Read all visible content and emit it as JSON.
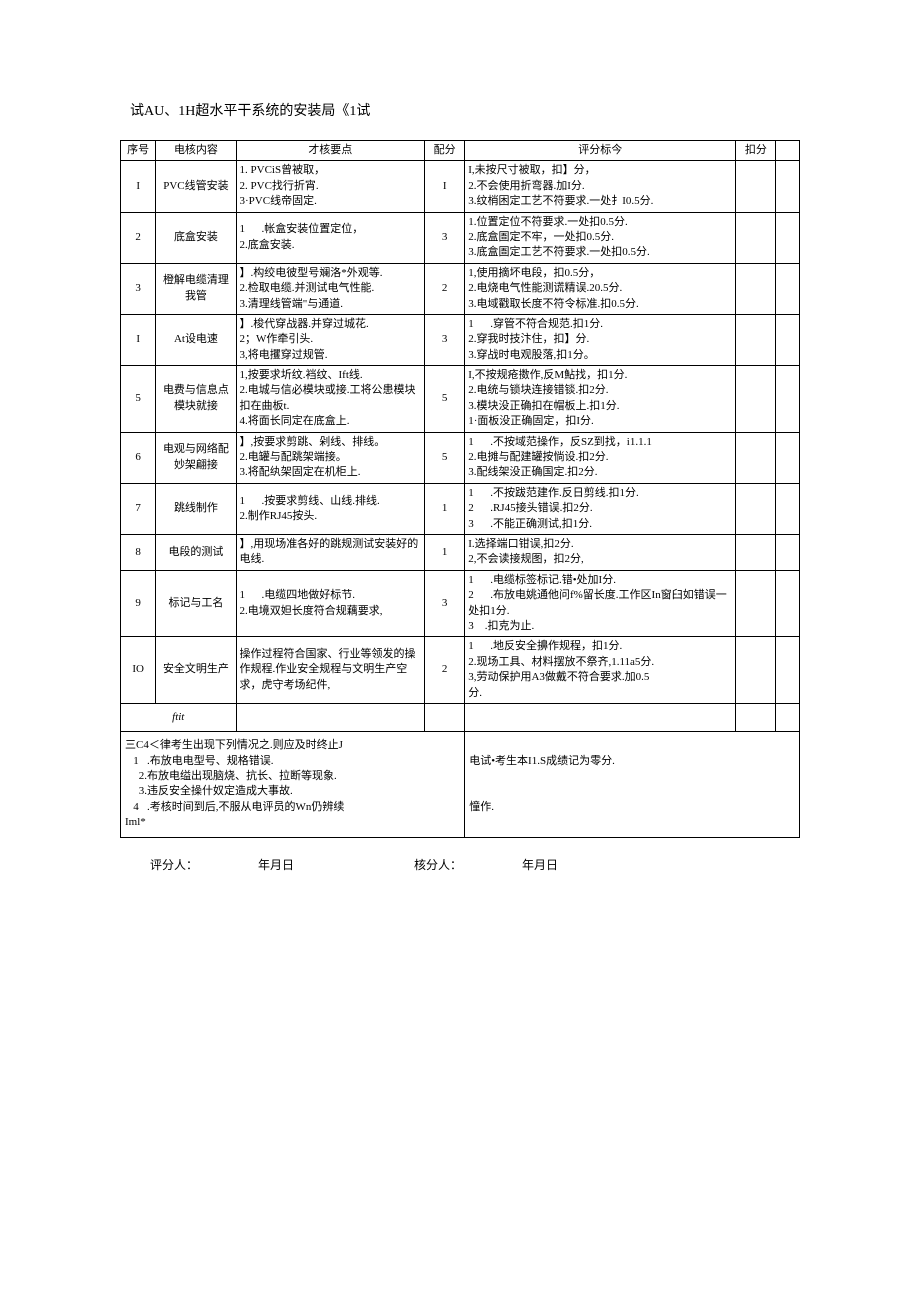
{
  "title": "试AU、1H超水平干系统的安装局《1试",
  "header": {
    "seq": "序号",
    "content": "电核内容",
    "points": "才核要点",
    "score": "配分",
    "criteria": "评分标今",
    "deduct": "扣分",
    "extra": ""
  },
  "rows": [
    {
      "seq": "I",
      "content": "PVC线管安装",
      "points": "1. PVCiS曾被取，\n2. PVC找行折宵.\n3·PVC线帝固定.",
      "score": "I",
      "criteria": "I,未按尺寸被取，扣】分，\n2.不会使用折弯器.加I分.\n3.纹梢困定工艺不符要求.一处扌I0.5分."
    },
    {
      "seq": "2",
      "content": "底盒安装",
      "points": "1      .帐盒安装位置定位，\n2.底盒安装.",
      "score": "3",
      "criteria": "1.位置定位不符要求.一处扣0.5分.\n2.底盒圄定不牢，一处扣0.5分.\n3.底盒圄定工艺不符要求.一处扣0.5分."
    },
    {
      "seq": "3",
      "content": "橙解电缆清理我管",
      "points": "】.构绞电彼型号斓洛*外观等.\n2.检取电缆.并测试电气性能.\n3.清理线管端\"与通道.",
      "score": "2",
      "criteria": "1,使用摘坏电段，扣0.5分，\n2.电烧电气性能测谎精误.20.5分.\n3.电域戳取长度不符令标准.扣0.5分."
    },
    {
      "seq": "I",
      "content": "At设电速",
      "points": "】.梭代穿战器.并穿过城花.\n2；W作牵引头.\n3,将电攫穿过规管.",
      "score": "3",
      "criteria": "1      .穿管不符合规范.扣1分.\n2.穿我时技汴住，扣】分.\n3.穿战时电观股落,扣1分。"
    },
    {
      "seq": "5",
      "content": "电费与信息点模块就接",
      "points": "1,按要求圻纹.裆纹、Ift线.\n2.电城与信必模块或接.工将公患模块扣在曲板t.\n4.将面长同定在底盒上.",
      "score": "5",
      "criteria": "I,不按规疮擞作,反M鮎找，扣1分.\n2.电统与锁块连接错锬.扣2分.\n3.模块没正确扣在帽板上.扣1分.\n1·面板没正确固定，扣I分."
    },
    {
      "seq": "6",
      "content": "电观与网络配妙架翩接",
      "points": "】,按要求剪跳、剁线、排线。\n2.电罐与配跳架端接。\n3.将配纨架固定在机柜上.",
      "score": "5",
      "criteria": "1      .不按域范操作，反SZ到找，i1.1.1\n2.电摊与配建罐按惝设.扣2分.\n3.配线架没正确国定.扣2分."
    },
    {
      "seq": "7",
      "content": "跳线制作",
      "points": "1      .按要求剪线、山线.排线.\n2.制作RJ45按头.",
      "score": "1",
      "criteria": "1      .不按跋范建作.反日剪线.扣1分.\n2      .RJ45接头错误.扣2分.\n3      .不能正确测试,扣1分."
    },
    {
      "seq": "8",
      "content": "电段的测试",
      "points": "】,用现场准各好的跳规测试安装好的电线.",
      "score": "1",
      "criteria": "I.选择端口钳误,扣2分.\n2,不会读接规图，扣2分,"
    },
    {
      "seq": "9",
      "content": "标记与工名",
      "points": "1      .电缆四地做好标节.\n2.电境双妲长度符合规藕要求,",
      "score": "3",
      "criteria": "1      .电缆标签标记.错•处加I分.\n2      .布放电姚通他问f%留长度.工作区In窗臼如错误一处扣1分.\n3    .扣克为止."
    },
    {
      "seq": "IO",
      "content": "安全文明生产",
      "points": "操作过程符合国家、行业等领发的操作规程.作业安全规程与文明生产空求，虎守考场纪件,",
      "score": "2",
      "criteria": "1      .地反安全擤作规程，扣1分.\n2.现场工具、材料摆放不祭齐,1.11a5分.\n3,劳动保护用A3做戴不符合要求.加0.5\n分."
    }
  ],
  "footer": {
    "sum": "ftit",
    "notes": "三C4＜律考生出现下列情况之.则应及时终止J\n   1   .布放电电型号、规格错误.\n     2.布放电缢出现脑烧、抗长、拉断等现象.\n     3.违反安全操什奴定造成大事故.\n   4   .考核时间到后,不服从电评员的Wn仍辨续\nIml*",
    "right1": "电试•考生本I1.S成绩记为零分.",
    "right2": "憧作."
  },
  "sign": {
    "reviewer": "评分人：",
    "date1": "年月日",
    "checker": "核分人：",
    "date2": "年月日"
  }
}
